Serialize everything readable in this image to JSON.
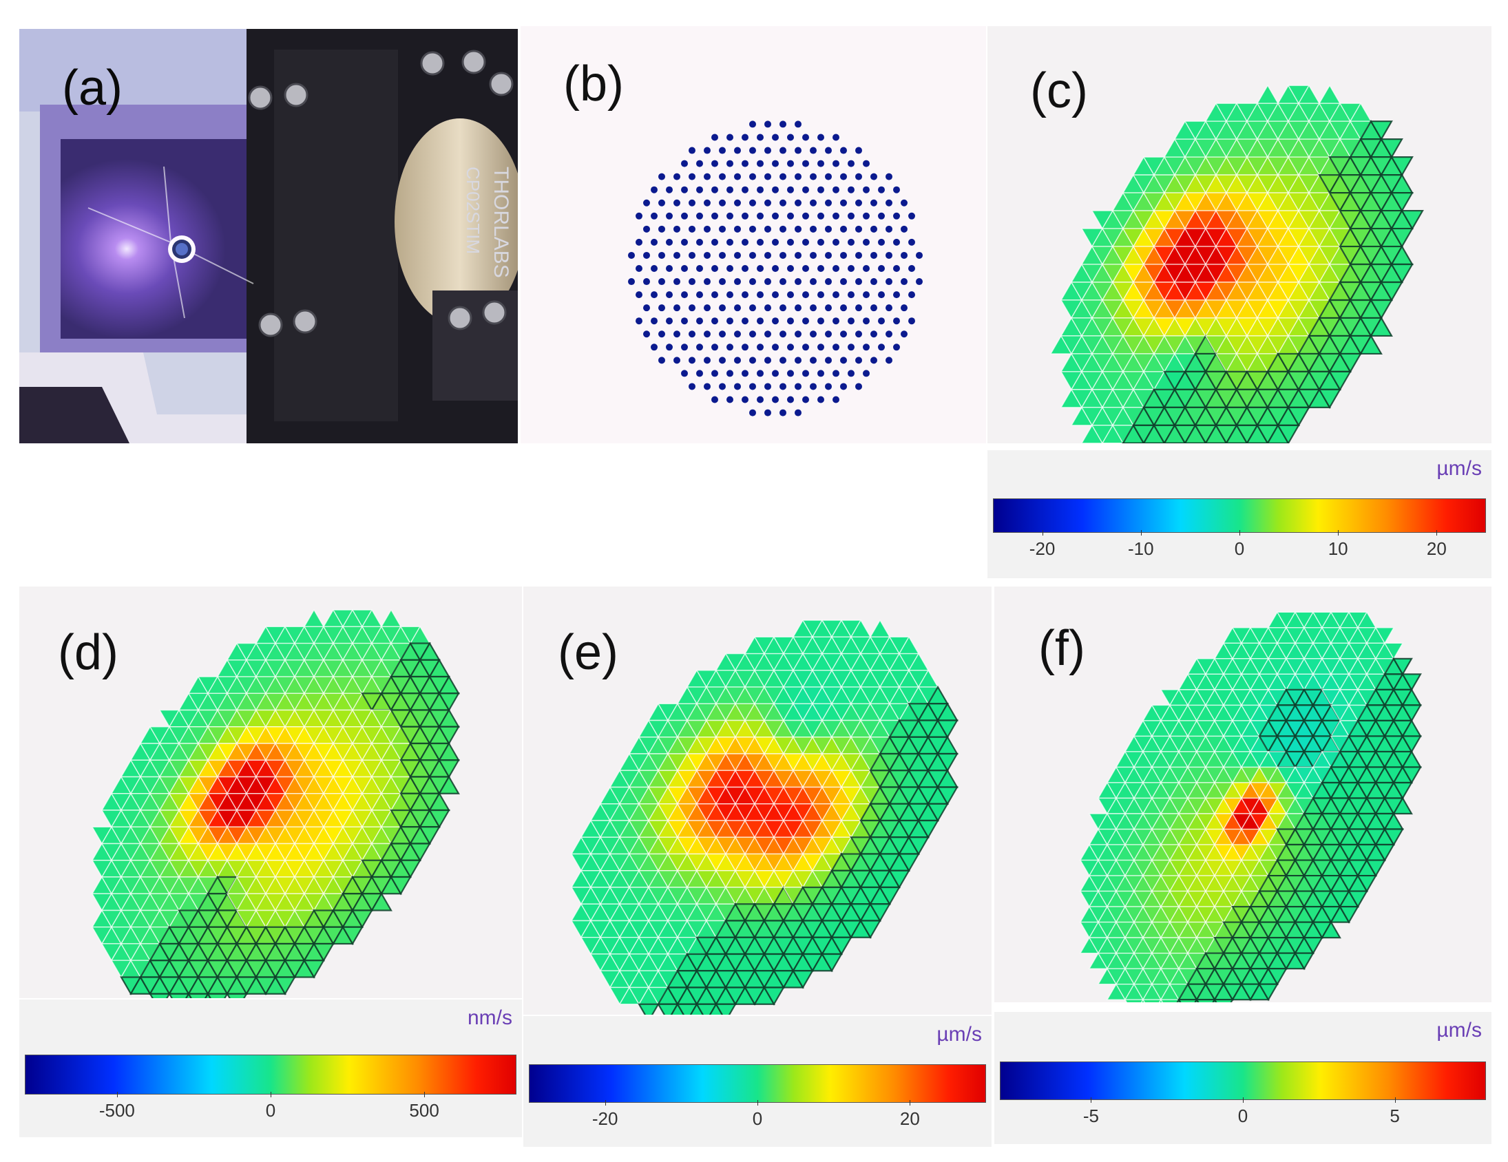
{
  "panels": {
    "a": {
      "label": "(a)",
      "device_text_1": "THORLABS",
      "device_text_2": "CP02STIM"
    },
    "b": {
      "label": "(b)"
    },
    "c": {
      "label": "(c)"
    },
    "d": {
      "label": "(d)"
    },
    "e": {
      "label": "(e)"
    },
    "f": {
      "label": "(f)"
    }
  },
  "colorbars": {
    "c": {
      "unit": "µm/s",
      "ticks": [
        "-20",
        "-10",
        "0",
        "10",
        "20"
      ],
      "range": [
        -25,
        25
      ]
    },
    "d": {
      "unit": "nm/s",
      "ticks": [
        "-500",
        "0",
        "500"
      ],
      "range": [
        -800,
        800
      ]
    },
    "e": {
      "unit": "µm/s",
      "ticks": [
        "-20",
        "0",
        "20"
      ],
      "range": [
        -30,
        30
      ]
    },
    "f": {
      "unit": "µm/s",
      "ticks": [
        "-5",
        "0",
        "5"
      ],
      "range": [
        -8,
        8
      ]
    }
  },
  "colors": {
    "dot": "#0b1a8f",
    "mesh_dark": "#0f3d2a",
    "mesh_light": "#ffffff",
    "green": "#22d68a",
    "yellow": "#ffe600",
    "red": "#ff2a00"
  }
}
